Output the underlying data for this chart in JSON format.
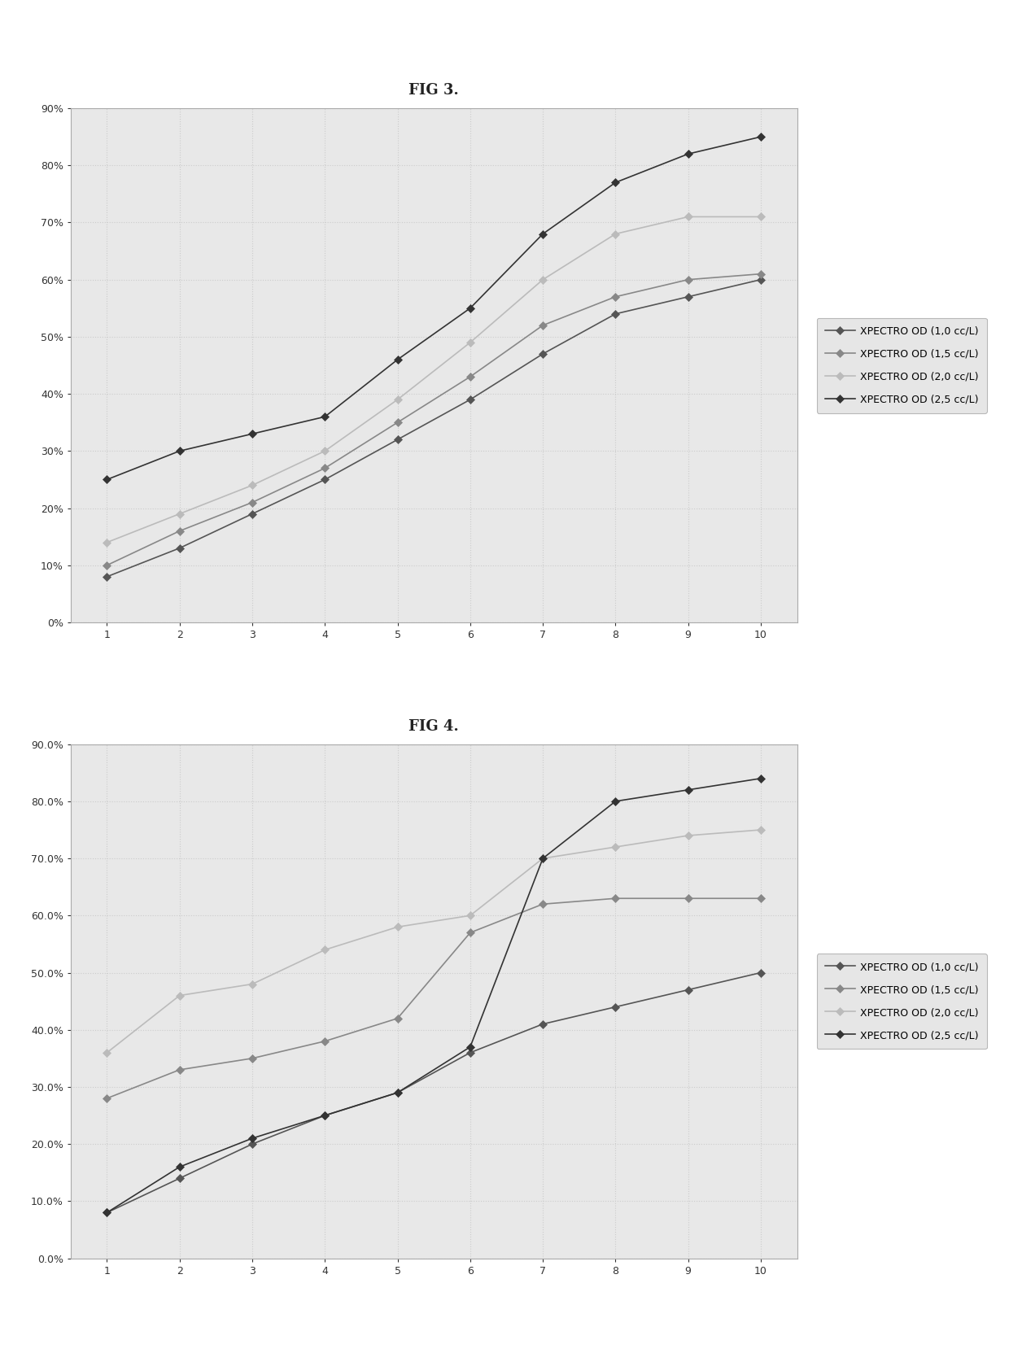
{
  "fig3_title": "FIG 3.",
  "fig4_title": "FIG 4.",
  "x": [
    1,
    2,
    3,
    4,
    5,
    6,
    7,
    8,
    9,
    10
  ],
  "fig3_series": [
    {
      "label": "XPECTRO OD (1,0 cc/L)",
      "values": [
        0.08,
        0.13,
        0.19,
        0.25,
        0.32,
        0.39,
        0.47,
        0.54,
        0.57,
        0.6
      ]
    },
    {
      "label": "XPECTRO OD (1,5 cc/L)",
      "values": [
        0.1,
        0.16,
        0.21,
        0.27,
        0.35,
        0.43,
        0.52,
        0.57,
        0.6,
        0.61
      ]
    },
    {
      "label": "XPECTRO OD (2,0 cc/L)",
      "values": [
        0.14,
        0.19,
        0.24,
        0.3,
        0.39,
        0.49,
        0.6,
        0.68,
        0.71,
        0.71
      ]
    },
    {
      "label": "XPECTRO OD (2,5 cc/L)",
      "values": [
        0.25,
        0.3,
        0.33,
        0.36,
        0.46,
        0.55,
        0.68,
        0.77,
        0.82,
        0.85
      ]
    }
  ],
  "fig4_series": [
    {
      "label": "XPECTRO OD (1,0 cc/L)",
      "values": [
        0.08,
        0.14,
        0.2,
        0.25,
        0.29,
        0.36,
        0.41,
        0.44,
        0.47,
        0.5
      ]
    },
    {
      "label": "XPECTRO OD (1,5 cc/L)",
      "values": [
        0.28,
        0.33,
        0.35,
        0.38,
        0.42,
        0.57,
        0.62,
        0.63,
        0.63,
        0.63
      ]
    },
    {
      "label": "XPECTRO OD (2,0 cc/L)",
      "values": [
        0.36,
        0.46,
        0.48,
        0.54,
        0.58,
        0.6,
        0.7,
        0.72,
        0.74,
        0.75
      ]
    },
    {
      "label": "XPECTRO OD (2,5 cc/L)",
      "values": [
        0.08,
        0.16,
        0.21,
        0.25,
        0.29,
        0.37,
        0.7,
        0.8,
        0.82,
        0.84
      ]
    }
  ],
  "fig3_ytick_fmt": "int_pct",
  "fig4_ytick_fmt": "dec_pct",
  "overall_bg": "#ffffff",
  "plot_bg": "#e8e8e8",
  "border_color": "#aaaaaa",
  "grid_color": "#cccccc",
  "grid_style": ":",
  "line_color_1": "#555555",
  "line_color_2": "#888888",
  "line_color_3": "#bbbbbb",
  "line_color_4": "#333333",
  "legend_bg": "#e0e0e0",
  "legend_border": "#aaaaaa",
  "title_fontsize": 13,
  "tick_fontsize": 9,
  "legend_fontsize": 9,
  "marker_size": 5,
  "line_width": 1.2
}
